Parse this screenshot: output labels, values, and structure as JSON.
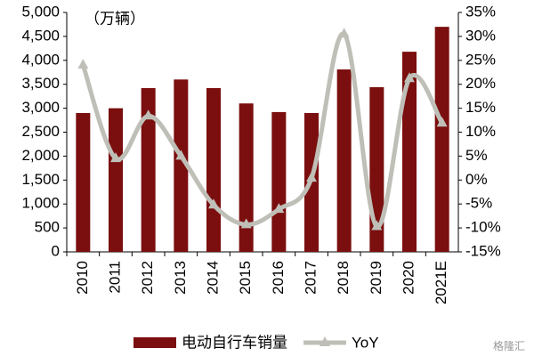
{
  "chart_data": {
    "type": "bar-line",
    "annotation": "（万辆）",
    "categories": [
      "2010",
      "2011",
      "2012",
      "2013",
      "2014",
      "2015",
      "2016",
      "2017",
      "2018",
      "2019",
      "2020",
      "2021E"
    ],
    "series": [
      {
        "name": "电动自行车销量",
        "type": "bar",
        "color": "#7b0e0e",
        "values": [
          2900,
          3000,
          3420,
          3600,
          3420,
          3100,
          2920,
          2900,
          3810,
          3440,
          4180,
          4700
        ]
      },
      {
        "name": "YoY",
        "type": "line",
        "axis": "y2",
        "color": "#bfbfb8",
        "values": [
          24,
          4.5,
          13.4,
          5,
          -5.2,
          -9.3,
          -6.1,
          0.4,
          30.5,
          -9.7,
          21.2,
          11.9
        ]
      }
    ],
    "ylim": [
      0,
      5000
    ],
    "yticks": [
      0,
      500,
      {
        "value": 1000,
        "label": "1,000"
      },
      {
        "value": 1500,
        "label": "1,500"
      },
      {
        "value": 2000,
        "label": "2,000"
      },
      {
        "value": 2500,
        "label": "2,500"
      },
      {
        "value": 3000,
        "label": "3,000"
      },
      {
        "value": 3500,
        "label": "3,500"
      },
      {
        "value": 4000,
        "label": "4,000"
      },
      {
        "value": 4500,
        "label": "4,500"
      },
      {
        "value": 5000,
        "label": "5,000"
      }
    ],
    "y2lim": [
      -15,
      35
    ],
    "y2ticks": [
      {
        "value": -15,
        "label": "-15%"
      },
      {
        "value": -10,
        "label": "-10%"
      },
      {
        "value": -5,
        "label": "-5%"
      },
      {
        "value": 0,
        "label": "0%"
      },
      {
        "value": 5,
        "label": "5%"
      },
      {
        "value": 10,
        "label": "10%"
      },
      {
        "value": 15,
        "label": "15%"
      },
      {
        "value": 20,
        "label": "20%"
      },
      {
        "value": 25,
        "label": "25%"
      },
      {
        "value": 30,
        "label": "30%"
      },
      {
        "value": 35,
        "label": "35%"
      }
    ],
    "grid": false,
    "legend": "bottom",
    "watermark": "格隆汇"
  }
}
